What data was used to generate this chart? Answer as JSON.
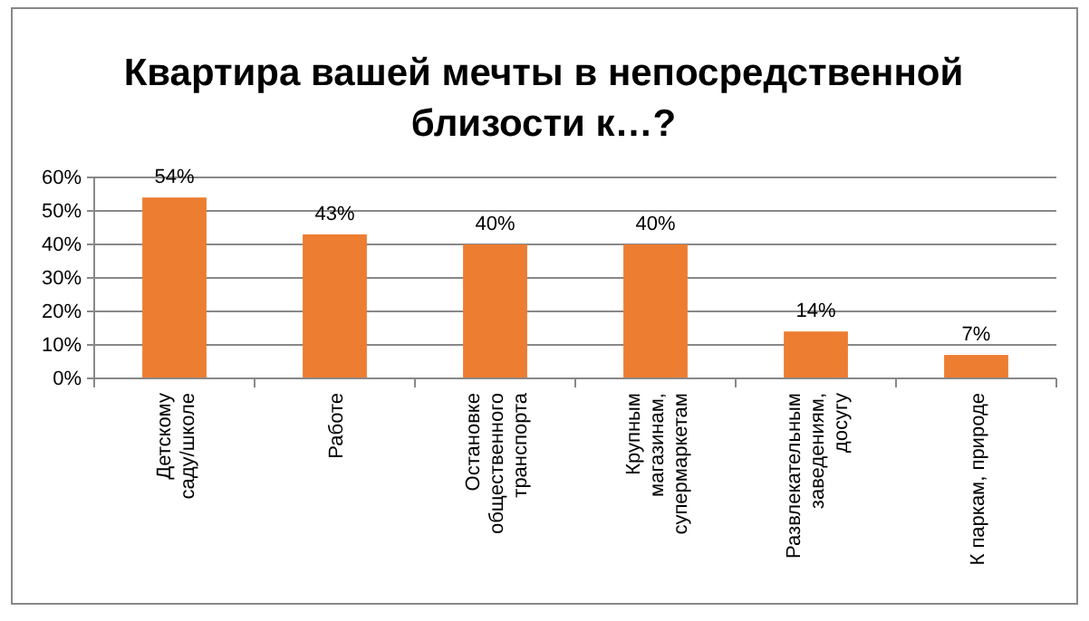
{
  "chart_data": {
    "type": "bar",
    "title": "Квартира вашей мечты в непосредственной близости к…?",
    "categories": [
      "Детскому саду/школе",
      "Работе",
      "Остановке общественного транспорта",
      "Крупным магазинам, супермаркетам",
      "Развлекательным заведениям, досугу",
      "К паркам, природе"
    ],
    "values": [
      54,
      43,
      40,
      40,
      14,
      7
    ],
    "value_labels": [
      "54%",
      "43%",
      "40%",
      "40%",
      "14%",
      "7%"
    ],
    "color": "#ed7d31",
    "ylim": [
      0,
      60
    ],
    "yticks": [
      {
        "value": 0,
        "label": "0%"
      },
      {
        "value": 10,
        "label": "10%"
      },
      {
        "value": 20,
        "label": "20%"
      },
      {
        "value": 30,
        "label": "30%"
      },
      {
        "value": 40,
        "label": "40%"
      },
      {
        "value": 50,
        "label": "50%"
      },
      {
        "value": 60,
        "label": "60%"
      }
    ],
    "grid": "y"
  }
}
